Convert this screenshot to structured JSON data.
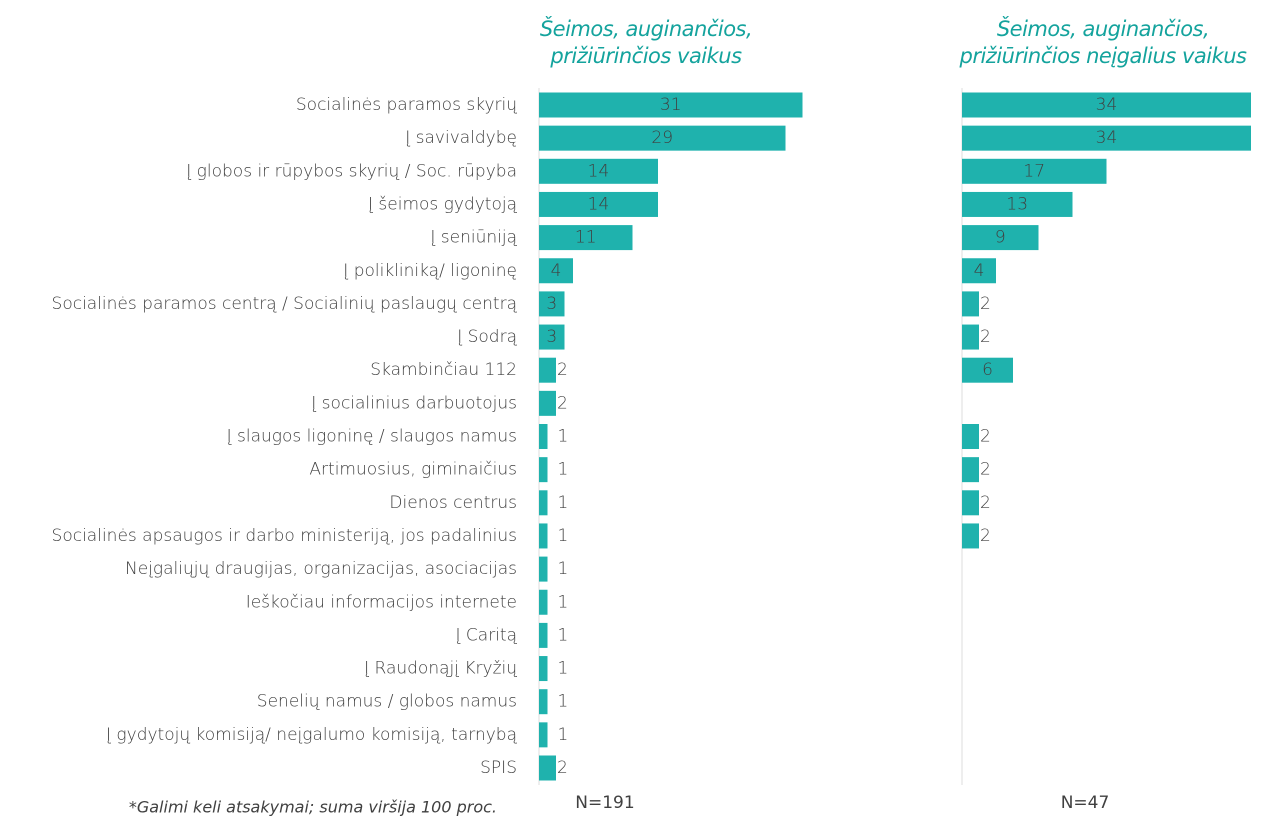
{
  "chart_data": {
    "type": "bar",
    "orientation": "horizontal",
    "categories": [
      "Socialinės paramos skyrių",
      "Į savivaldybę",
      "Į globos ir rūpybos skyrių / Soc. rūpyba",
      "Į šeimos gydytoją",
      "Į seniūniją",
      "Į polikliniką/ ligoninę",
      "Socialinės paramos centrą / Socialinių paslaugų centrą",
      "Į Sodrą",
      "Skambinčiau 112",
      "Į socialinius darbuotojus",
      "Į slaugos ligoninę / slaugos namus",
      "Artimuosius, giminaičius",
      "Dienos centrus",
      "Socialinės apsaugos ir darbo ministeriją, jos padalinius",
      "Neįgaliųjų draugijas, organizacijas, asociacijas",
      "Ieškočiau informacijos internete",
      "Į Caritą",
      "Į Raudonąjį Kryžių",
      "Senelių namus / globos namus",
      "Į gydytojų komisiją/ neįgalumo komisiją, tarnybą",
      "SPIS"
    ],
    "xlim": [
      0,
      34
    ],
    "series": [
      {
        "name": "Šeimos, auginančios, prižiūrinčios vaikus",
        "note": "N=191",
        "color": "#1fb2ad",
        "values": [
          31,
          29,
          14,
          14,
          11,
          4,
          3,
          3,
          2,
          2,
          1,
          1,
          1,
          1,
          1,
          1,
          1,
          1,
          1,
          1,
          2
        ]
      },
      {
        "name": "Šeimos, auginančios, prižiūrinčios neįgalius vaikus",
        "note": "N=47",
        "color": "#1fb2ad",
        "values": [
          34,
          34,
          17,
          13,
          9,
          4,
          2,
          2,
          6,
          null,
          2,
          2,
          2,
          2,
          null,
          null,
          null,
          null,
          null,
          null,
          null
        ]
      }
    ],
    "footnote": "*Galimi keli atsakymai; suma viršija 100 proc."
  }
}
